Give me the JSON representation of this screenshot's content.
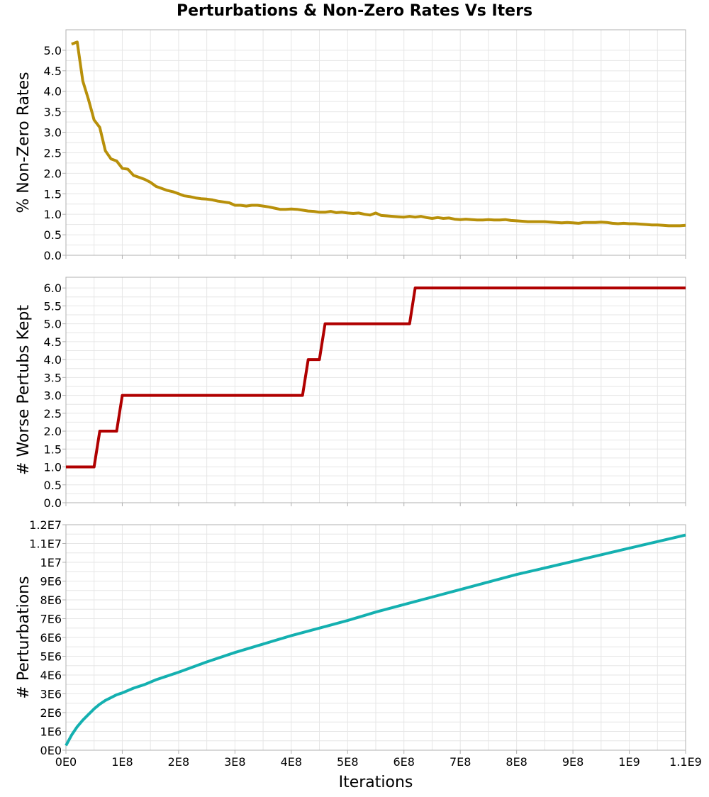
{
  "chart_data": {
    "title": "Perturbations & Non-Zero Rates Vs Iters",
    "xlabel": "Iterations",
    "type": "line",
    "x_ticks": [
      "0E0",
      "1E8",
      "2E8",
      "3E8",
      "4E8",
      "5E8",
      "6E8",
      "7E8",
      "8E8",
      "9E8",
      "1E9",
      "1.1E9"
    ],
    "xlim": [
      0,
      1100000000
    ],
    "grid": true,
    "panels": [
      {
        "type": "line",
        "ylabel": "% Non-Zero Rates",
        "ylim": [
          0,
          5.5
        ],
        "y_ticks": [
          "0.0",
          "0.5",
          "1.0",
          "1.5",
          "2.0",
          "2.5",
          "3.0",
          "3.5",
          "4.0",
          "4.5",
          "5.0"
        ],
        "color": "#b8900a",
        "x": [
          10000000,
          20000000,
          30000000,
          40000000,
          50000000,
          60000000,
          70000000,
          80000000,
          90000000,
          100000000,
          110000000,
          120000000,
          130000000,
          140000000,
          150000000,
          160000000,
          170000000,
          180000000,
          190000000,
          200000000,
          210000000,
          220000000,
          230000000,
          240000000,
          250000000,
          260000000,
          270000000,
          280000000,
          290000000,
          300000000,
          310000000,
          320000000,
          330000000,
          340000000,
          350000000,
          360000000,
          370000000,
          380000000,
          390000000,
          400000000,
          410000000,
          420000000,
          430000000,
          440000000,
          450000000,
          460000000,
          470000000,
          480000000,
          490000000,
          500000000,
          510000000,
          520000000,
          530000000,
          540000000,
          550000000,
          560000000,
          570000000,
          580000000,
          590000000,
          600000000,
          610000000,
          620000000,
          630000000,
          640000000,
          650000000,
          660000000,
          670000000,
          680000000,
          690000000,
          700000000,
          710000000,
          720000000,
          730000000,
          740000000,
          750000000,
          760000000,
          770000000,
          780000000,
          790000000,
          800000000,
          810000000,
          820000000,
          830000000,
          840000000,
          850000000,
          860000000,
          870000000,
          880000000,
          890000000,
          900000000,
          910000000,
          920000000,
          930000000,
          940000000,
          950000000,
          960000000,
          970000000,
          980000000,
          990000000,
          1000000000,
          1010000000,
          1020000000,
          1030000000,
          1040000000,
          1050000000,
          1060000000,
          1070000000,
          1080000000,
          1090000000,
          1100000000
        ],
        "y": [
          5.15,
          5.2,
          4.25,
          3.8,
          3.3,
          3.12,
          2.55,
          2.35,
          2.3,
          2.12,
          2.1,
          1.95,
          1.9,
          1.85,
          1.78,
          1.68,
          1.63,
          1.58,
          1.55,
          1.5,
          1.45,
          1.43,
          1.4,
          1.38,
          1.37,
          1.35,
          1.32,
          1.3,
          1.28,
          1.22,
          1.22,
          1.2,
          1.22,
          1.22,
          1.2,
          1.18,
          1.15,
          1.12,
          1.12,
          1.13,
          1.12,
          1.1,
          1.08,
          1.07,
          1.05,
          1.05,
          1.07,
          1.04,
          1.05,
          1.03,
          1.02,
          1.03,
          1.0,
          0.98,
          1.03,
          0.97,
          0.96,
          0.95,
          0.94,
          0.93,
          0.95,
          0.93,
          0.95,
          0.92,
          0.9,
          0.92,
          0.9,
          0.91,
          0.88,
          0.87,
          0.88,
          0.87,
          0.86,
          0.86,
          0.87,
          0.86,
          0.86,
          0.87,
          0.85,
          0.84,
          0.83,
          0.82,
          0.82,
          0.82,
          0.82,
          0.81,
          0.8,
          0.79,
          0.8,
          0.79,
          0.78,
          0.8,
          0.8,
          0.8,
          0.81,
          0.8,
          0.78,
          0.77,
          0.78,
          0.77,
          0.77,
          0.76,
          0.75,
          0.74,
          0.74,
          0.73,
          0.72,
          0.72,
          0.72,
          0.73
        ]
      },
      {
        "type": "line",
        "ylabel": "# Worse Pertubs Kept",
        "ylim": [
          0,
          6.3
        ],
        "y_ticks": [
          "0.0",
          "0.5",
          "1.0",
          "1.5",
          "2.0",
          "2.5",
          "3.0",
          "3.5",
          "4.0",
          "4.5",
          "5.0",
          "5.5",
          "6.0"
        ],
        "color": "#b00000",
        "step": true,
        "x": [
          0,
          50000000,
          60000000,
          90000000,
          100000000,
          420000000,
          430000000,
          450000000,
          460000000,
          610000000,
          620000000,
          1100000000
        ],
        "y": [
          1,
          1,
          2,
          2,
          3,
          3,
          4,
          4,
          5,
          5,
          6,
          6
        ]
      },
      {
        "type": "line",
        "ylabel": "# Perturbations",
        "ylim": [
          0,
          12000000
        ],
        "y_ticks": [
          "0E0",
          "1E6",
          "2E6",
          "3E6",
          "4E6",
          "5E6",
          "6E6",
          "7E6",
          "8E6",
          "9E6",
          "1E7",
          "1.1E7",
          "1.2E7"
        ],
        "color": "#14b0b0",
        "x": [
          0,
          10000000,
          20000000,
          30000000,
          40000000,
          50000000,
          60000000,
          70000000,
          80000000,
          90000000,
          100000000,
          120000000,
          140000000,
          160000000,
          180000000,
          200000000,
          250000000,
          300000000,
          350000000,
          400000000,
          450000000,
          500000000,
          550000000,
          600000000,
          650000000,
          700000000,
          750000000,
          800000000,
          850000000,
          900000000,
          950000000,
          1000000000,
          1050000000,
          1100000000
        ],
        "y": [
          250000,
          800000,
          1250000,
          1600000,
          1900000,
          2200000,
          2450000,
          2650000,
          2800000,
          2950000,
          3050000,
          3300000,
          3500000,
          3750000,
          3950000,
          4150000,
          4700000,
          5200000,
          5650000,
          6100000,
          6500000,
          6900000,
          7350000,
          7750000,
          8150000,
          8550000,
          8950000,
          9350000,
          9700000,
          10050000,
          10400000,
          10750000,
          11100000,
          11450000
        ]
      }
    ]
  }
}
